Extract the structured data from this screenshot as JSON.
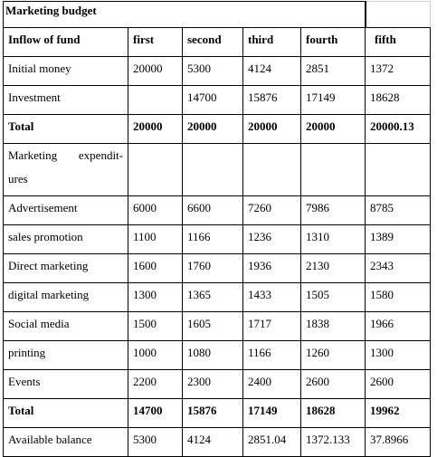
{
  "table": {
    "title": "Marketing budget",
    "header": {
      "label": "Inflow of fund",
      "periods": [
        "first",
        "second",
        "third",
        "fourth",
        "fifth"
      ]
    },
    "rows": [
      {
        "label": "Initial money",
        "values": [
          "20000",
          "5300",
          "4124",
          "2851",
          "1372"
        ],
        "bold": false
      },
      {
        "label": "Investment",
        "values": [
          "",
          "14700",
          "15876",
          "17149",
          "18628"
        ],
        "bold": false
      },
      {
        "label": "Total",
        "values": [
          "20000",
          "20000",
          "20000",
          "20000",
          "20000.13"
        ],
        "bold": true
      },
      {
        "label": "Marketing expendit-ures",
        "values": [
          "",
          "",
          "",
          "",
          ""
        ],
        "bold": false,
        "tall": true
      },
      {
        "label": "Advertisement",
        "values": [
          "6000",
          "6600",
          "7260",
          "7986",
          "8785"
        ],
        "bold": false
      },
      {
        "label": "sales promotion",
        "values": [
          "1100",
          "1166",
          "1236",
          "1310",
          "1389"
        ],
        "bold": false
      },
      {
        "label": "Direct marketing",
        "values": [
          "1600",
          "1760",
          "1936",
          "2130",
          "2343"
        ],
        "bold": false
      },
      {
        "label": "digital marketing",
        "values": [
          "1300",
          "1365",
          "1433",
          "1505",
          "1580"
        ],
        "bold": false
      },
      {
        "label": "Social media",
        "values": [
          "1500",
          "1605",
          "1717",
          "1838",
          "1966"
        ],
        "bold": false
      },
      {
        "label": "printing",
        "values": [
          "1000",
          "1080",
          "1166",
          "1260",
          "1300"
        ],
        "bold": false
      },
      {
        "label": "Events",
        "values": [
          "2200",
          "2300",
          "2400",
          "2600",
          "2600"
        ],
        "bold": false
      },
      {
        "label": "Total",
        "values": [
          "14700",
          "15876",
          "17149",
          "18628",
          "19962"
        ],
        "bold": true
      },
      {
        "label": "Available balance",
        "values": [
          "5300",
          "4124",
          "2851.04",
          "1372.133",
          "37.8966"
        ],
        "bold": false
      }
    ]
  }
}
